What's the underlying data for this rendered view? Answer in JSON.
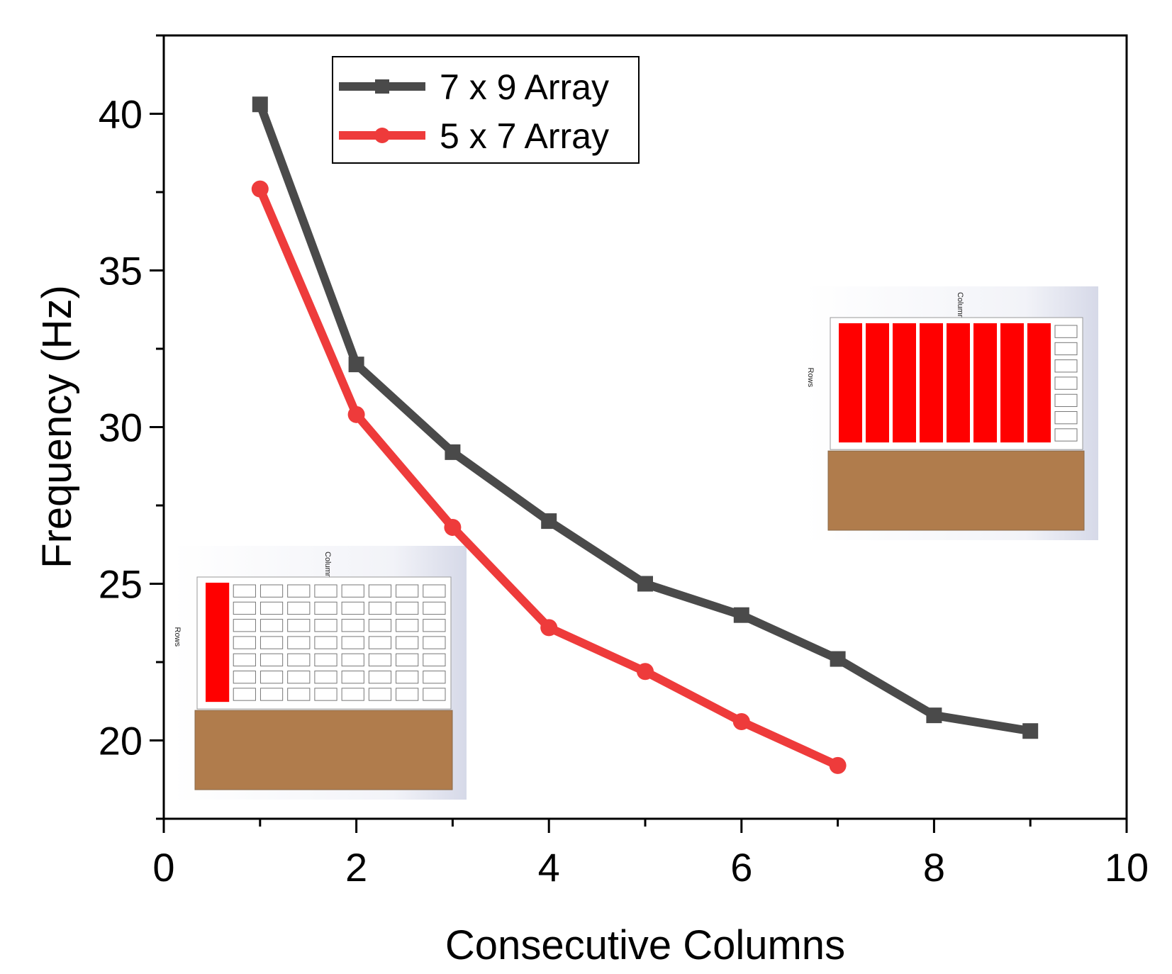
{
  "chart_data": {
    "type": "line",
    "title": "",
    "xlabel": "Consecutive Columns",
    "ylabel": "Frequency (Hz)",
    "xlim": [
      0,
      10
    ],
    "ylim": [
      17.5,
      42.5
    ],
    "xticks": [
      0,
      2,
      4,
      6,
      8,
      10
    ],
    "yticks": [
      20,
      25,
      30,
      35,
      40
    ],
    "grid": false,
    "legend_position": "top-left",
    "series": [
      {
        "name": "7 x 9 Array",
        "color": "#4a4a4a",
        "marker": "square",
        "x": [
          1,
          2,
          3,
          4,
          5,
          6,
          7,
          8,
          9
        ],
        "y": [
          40.3,
          32.0,
          29.2,
          27.0,
          25.0,
          24.0,
          22.6,
          20.8,
          20.3
        ]
      },
      {
        "name": "5 x 7 Array",
        "color": "#ee3b3b",
        "marker": "circle",
        "x": [
          1,
          2,
          3,
          4,
          5,
          6,
          7
        ],
        "y": [
          37.6,
          30.4,
          26.8,
          23.6,
          22.2,
          20.6,
          19.2
        ]
      }
    ],
    "insets": [
      {
        "position": "bottom-left",
        "column_label": "Column",
        "row_label": "Rows",
        "active_columns": 1,
        "total_columns": 9,
        "rows": 7
      },
      {
        "position": "right",
        "column_label": "Column",
        "row_label": "Rows",
        "active_columns": 8,
        "total_columns": 9,
        "rows": 7
      }
    ]
  },
  "colors": {
    "axis": "#000000",
    "active_column": "#ff0000",
    "base_plate": "#b07c4c"
  }
}
